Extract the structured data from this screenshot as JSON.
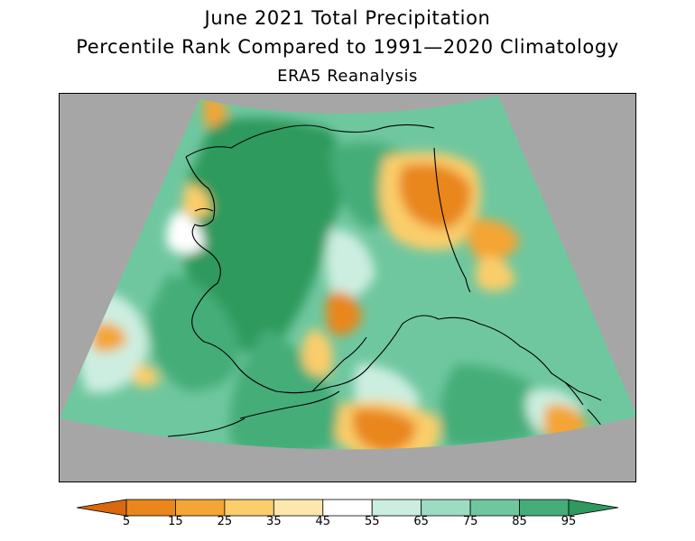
{
  "header": {
    "title_line1": "June 2021 Total Precipitation",
    "title_line2": "Percentile Rank Compared to 1991—2020 Climatology",
    "title_line3": "ERA5 Reanalysis"
  },
  "map": {
    "region": "Alaska and northwestern Canada",
    "background_color": "#a6a6a6",
    "coastline_color": "#000000"
  },
  "colorbar": {
    "ticks": [
      "5",
      "15",
      "25",
      "35",
      "45",
      "55",
      "65",
      "75",
      "85",
      "95"
    ],
    "colors": [
      "#d9680f",
      "#e9861c",
      "#f4a535",
      "#fbcd6b",
      "#fde7ad",
      "#ffffff",
      "#cceee0",
      "#9bdcc3",
      "#6fc79f",
      "#45ad78",
      "#2e9a5d"
    ]
  }
}
